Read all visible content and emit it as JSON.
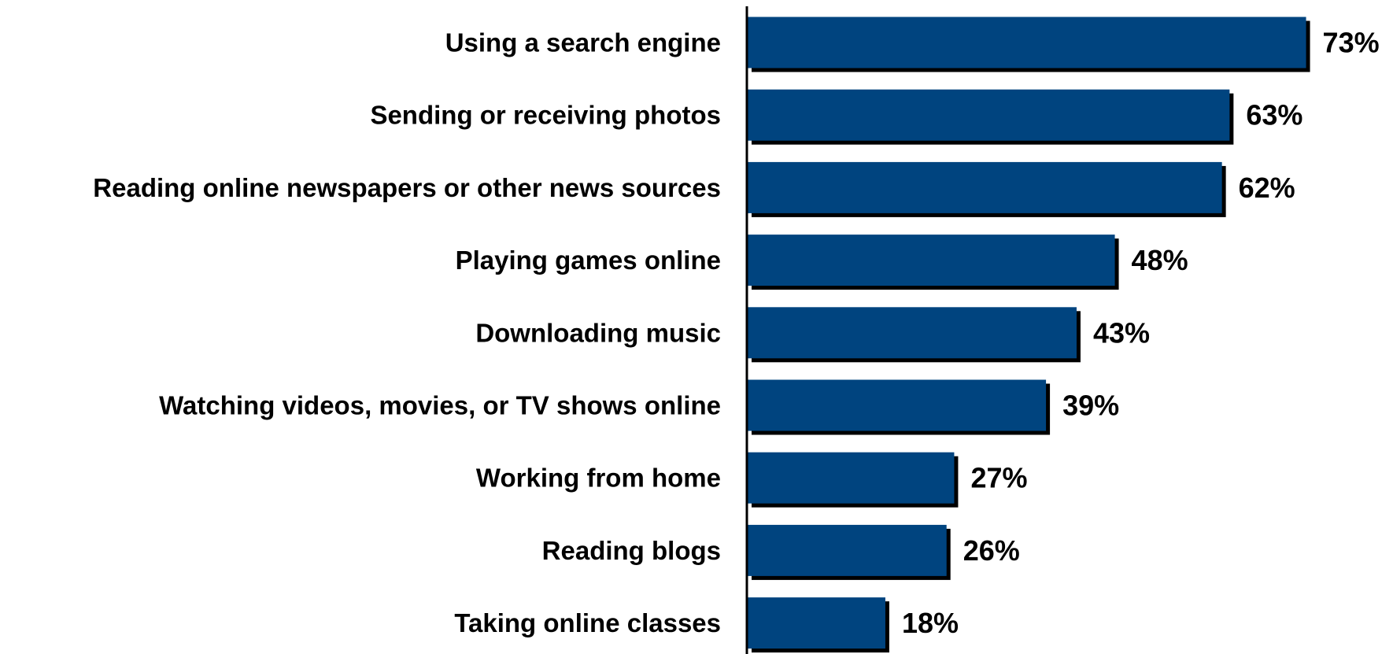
{
  "chart_data": {
    "type": "bar",
    "orientation": "horizontal",
    "categories": [
      "Using a search engine",
      "Sending or receiving photos",
      "Reading online newspapers or other news sources",
      "Playing games online",
      "Downloading music",
      "Watching videos, movies, or TV shows online",
      "Working from home",
      "Reading blogs",
      "Taking online classes"
    ],
    "values": [
      73,
      63,
      62,
      48,
      43,
      39,
      27,
      26,
      18
    ],
    "value_labels": [
      "73%",
      "63%",
      "62%",
      "48%",
      "43%",
      "39%",
      "27%",
      "26%",
      "18%"
    ],
    "title": "",
    "xlabel": "",
    "ylabel": "",
    "xlim": [
      0,
      80
    ],
    "grid": false,
    "legend": "none",
    "colors": {
      "bar": "#00447F",
      "shadow": "#000000",
      "text": "#000000",
      "axis": "#000000"
    }
  }
}
